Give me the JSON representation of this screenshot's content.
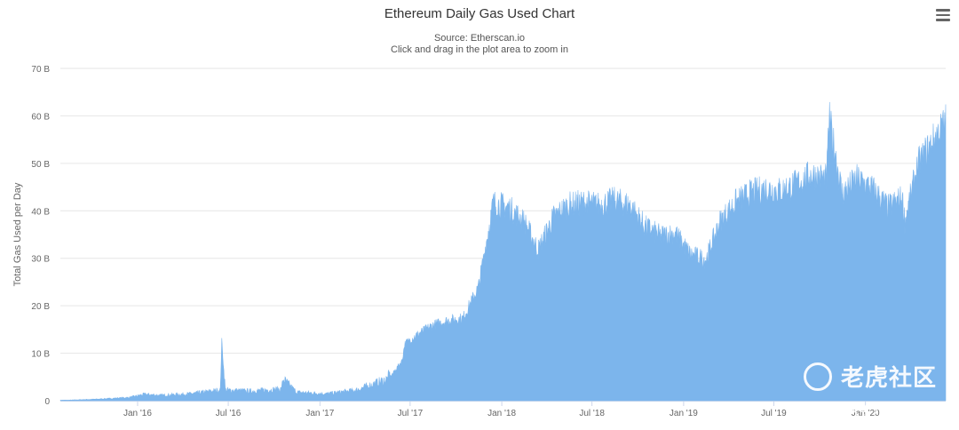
{
  "header": {
    "title": "Ethereum Daily Gas Used Chart",
    "source": "Source: Etherscan.io",
    "hint": "Click and drag in the plot area to zoom in"
  },
  "menu": {
    "icon": "hamburger-menu-icon"
  },
  "watermark": {
    "logo_text": "老虎社区",
    "handle": "@美港股入金小帮手"
  },
  "colors": {
    "area": "#7cb5ec",
    "grid": "#e6e6e6",
    "text": "#666666"
  },
  "chart_data": {
    "type": "area",
    "title": "Ethereum Daily Gas Used Chart",
    "subtitle": "Source: Etherscan.io",
    "ylabel": "Total Gas Used per Day",
    "xlabel": "",
    "ylim": [
      0,
      70
    ],
    "y_unit": "B",
    "y_ticks": [
      "0",
      "10 B",
      "20 B",
      "30 B",
      "40 B",
      "50 B",
      "60 B",
      "70 B"
    ],
    "x_ticks": [
      "Jan '16",
      "Jul '16",
      "Jan '17",
      "Jul '17",
      "Jan '18",
      "Jul '18",
      "Jan '19",
      "Jul '19",
      "Jan '20"
    ],
    "grid": true,
    "legend": "none",
    "series": [
      {
        "x": [
          "2015-08",
          "2015-10",
          "2015-12",
          "2016-01",
          "2016-02",
          "2016-04",
          "2016-06",
          "2016-06-18",
          "2016-06-25",
          "2016-08",
          "2016-10",
          "2016-10-20",
          "2016-11",
          "2017-01",
          "2017-03",
          "2017-05",
          "2017-06",
          "2017-06-20",
          "2017-07",
          "2017-08",
          "2017-09",
          "2017-10",
          "2017-11",
          "2017-12",
          "2018-01",
          "2018-02",
          "2018-03",
          "2018-04",
          "2018-05",
          "2018-06",
          "2018-07",
          "2018-08",
          "2018-09",
          "2018-10",
          "2018-11",
          "2018-12",
          "2019-01",
          "2019-02",
          "2019-03",
          "2019-04",
          "2019-05",
          "2019-06",
          "2019-07",
          "2019-08",
          "2019-09",
          "2019-10",
          "2019-10-20",
          "2019-11",
          "2019-12",
          "2020-01",
          "2020-02",
          "2020-03",
          "2020-03-20",
          "2020-04",
          "2020-05",
          "2020-06"
        ],
        "values": [
          0.1,
          0.3,
          0.6,
          1.2,
          1.0,
          1.3,
          2.0,
          12.5,
          2.0,
          1.8,
          2.2,
          4.0,
          1.6,
          1.3,
          2.0,
          4.0,
          8.5,
          12.0,
          14.0,
          16.0,
          17.0,
          17.5,
          24.0,
          42.0,
          41.0,
          38.0,
          32.0,
          39.0,
          41.5,
          42.0,
          41.5,
          42.5,
          41.5,
          37.0,
          35.0,
          35.5,
          31.0,
          30.0,
          38.0,
          42.0,
          44.0,
          45.0,
          44.5,
          46.0,
          48.0,
          47.0,
          60.0,
          44.0,
          47.0,
          45.0,
          41.0,
          43.0,
          38.0,
          50.0,
          55.0,
          60.0
        ]
      }
    ]
  }
}
